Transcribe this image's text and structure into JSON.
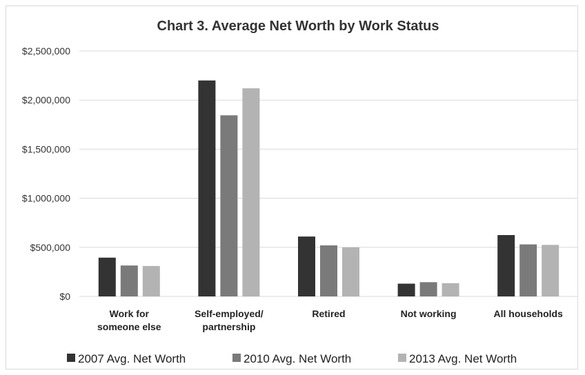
{
  "chart_data": {
    "type": "bar",
    "title": "Chart 3. Average Net Worth by Work Status",
    "xlabel": "",
    "ylabel": "",
    "categories": [
      [
        "Work for",
        "someone else"
      ],
      [
        "Self-employed/",
        "partnership"
      ],
      [
        "Retired"
      ],
      [
        "Not working"
      ],
      [
        "All households"
      ]
    ],
    "series": [
      {
        "name": "2007 Avg. Net Worth",
        "color": "#333333",
        "values": [
          395000,
          2200000,
          610000,
          130000,
          625000
        ]
      },
      {
        "name": "2010 Avg. Net Worth",
        "color": "#7a7a7a",
        "values": [
          315000,
          1845000,
          520000,
          145000,
          530000
        ]
      },
      {
        "name": "2013 Avg. Net Worth",
        "color": "#b3b3b3",
        "values": [
          310000,
          2120000,
          500000,
          135000,
          525000
        ]
      }
    ],
    "ylim": [
      0,
      2500000
    ],
    "yticks": [
      0,
      500000,
      1000000,
      1500000,
      2000000,
      2500000
    ],
    "ytick_labels": [
      "$0",
      "$500,000",
      "$1,000,000",
      "$1,500,000",
      "$2,000,000",
      "$2,500,000"
    ],
    "grid": true,
    "legend_position": "bottom"
  }
}
